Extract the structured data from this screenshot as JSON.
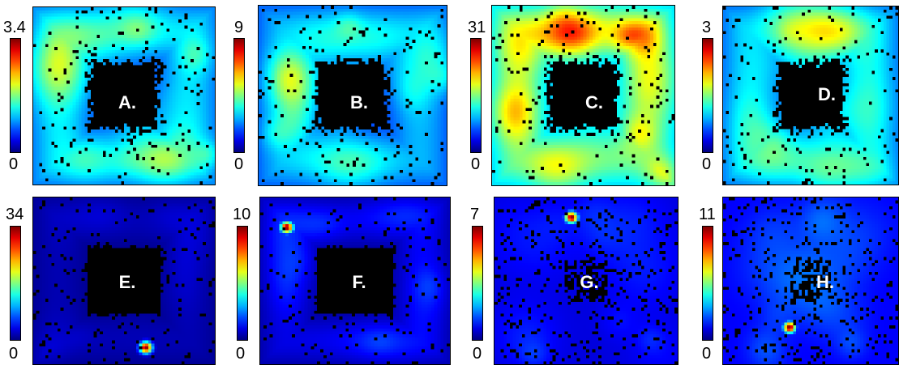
{
  "chart_data": [
    {
      "type": "heatmap",
      "label": "A.",
      "colorbar": {
        "min": "0",
        "max": "3.4",
        "vmax": 3.4
      },
      "pattern": "ring-mixed",
      "level": 0.62,
      "hotspots": []
    },
    {
      "type": "heatmap",
      "label": "B.",
      "colorbar": {
        "min": "0",
        "max": "9",
        "vmax": 9
      },
      "pattern": "ring-mixed",
      "level": 0.55,
      "hotspots": []
    },
    {
      "type": "heatmap",
      "label": "C.",
      "colorbar": {
        "min": "0",
        "max": "31",
        "vmax": 31
      },
      "pattern": "ring-high",
      "level": 0.85,
      "hotspots": []
    },
    {
      "type": "heatmap",
      "label": "D.",
      "colorbar": {
        "min": "0",
        "max": "3",
        "vmax": 3
      },
      "pattern": "ring-mixed",
      "level": 0.6,
      "hotspots": []
    },
    {
      "type": "heatmap",
      "label": "E.",
      "colorbar": {
        "min": "0",
        "max": "34",
        "vmax": 34
      },
      "pattern": "ring-low",
      "level": 0.12,
      "hotspots": [
        {
          "value": 34,
          "location": "bottom-right"
        }
      ]
    },
    {
      "type": "heatmap",
      "label": "F.",
      "colorbar": {
        "min": "0",
        "max": "10",
        "vmax": 10
      },
      "pattern": "ring-low",
      "level": 0.25,
      "hotspots": [
        {
          "value": 10,
          "location": "top-left"
        }
      ]
    },
    {
      "type": "heatmap",
      "label": "G.",
      "colorbar": {
        "min": "0",
        "max": "7",
        "vmax": 7
      },
      "pattern": "diffuse-low",
      "level": 0.15,
      "hotspots": [
        {
          "value": 7,
          "location": "top-center"
        }
      ]
    },
    {
      "type": "heatmap",
      "label": "H.",
      "colorbar": {
        "min": "0",
        "max": "11",
        "vmax": 11
      },
      "pattern": "diffuse-low",
      "level": 0.2,
      "hotspots": [
        {
          "value": 11,
          "location": "bottom-center"
        }
      ]
    }
  ]
}
